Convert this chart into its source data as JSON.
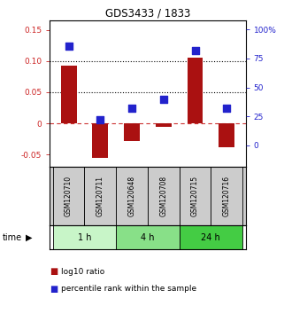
{
  "title": "GDS3433 / 1833",
  "samples": [
    "GSM120710",
    "GSM120711",
    "GSM120648",
    "GSM120708",
    "GSM120715",
    "GSM120716"
  ],
  "log10_ratio": [
    0.092,
    -0.055,
    -0.028,
    -0.005,
    0.105,
    -0.038
  ],
  "percentile_rank": [
    0.86,
    0.22,
    0.32,
    0.4,
    0.82,
    0.32
  ],
  "time_groups": [
    {
      "label": "1 h",
      "indices": [
        0,
        1
      ],
      "color": "#c8f5c8"
    },
    {
      "label": "4 h",
      "indices": [
        2,
        3
      ],
      "color": "#88e088"
    },
    {
      "label": "24 h",
      "indices": [
        4,
        5
      ],
      "color": "#44cc44"
    }
  ],
  "bar_color": "#aa1111",
  "dot_color": "#2222cc",
  "ylim_left": [
    -0.07,
    0.165
  ],
  "ylim_right": [
    -18.9,
    108
  ],
  "yticks_left": [
    -0.05,
    0,
    0.05,
    0.1,
    0.15
  ],
  "yticks_right": [
    0,
    25,
    50,
    75,
    100
  ],
  "ytick_labels_left": [
    "-0.05",
    "0",
    "0.05",
    "0.10",
    "0.15"
  ],
  "ytick_labels_right": [
    "0",
    "25",
    "50",
    "75",
    "100%"
  ],
  "hline_zero_color": "#cc3333",
  "hline_color": "black",
  "legend_items": [
    "log10 ratio",
    "percentile rank within the sample"
  ],
  "time_label": "time",
  "background_color": "#ffffff",
  "plot_bg": "#ffffff",
  "sample_bg": "#cccccc",
  "bar_width": 0.5,
  "dot_size": 28,
  "title_color": "black",
  "title_fontsize": 8.5
}
